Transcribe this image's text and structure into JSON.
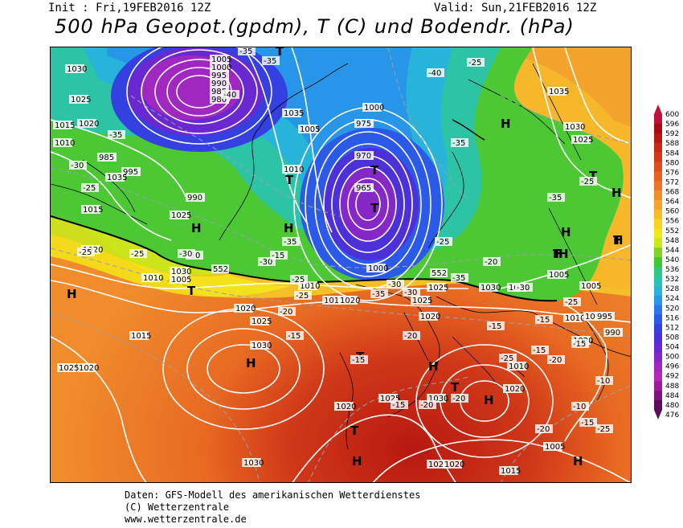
{
  "header": {
    "init": "Init : Fri,19FEB2016 12Z",
    "valid": "Valid: Sun,21FEB2016 12Z",
    "title": "500 hPa Geopot.(gpdm), T (C) und Bodendr. (hPa)"
  },
  "footer": {
    "line1": "Daten: GFS-Modell des amerikanischen Wetterdienstes",
    "line2": "(C) Wetterzentrale",
    "line3": "www.wetterzentrale.de"
  },
  "colorbar": {
    "labels": [
      "600",
      "596",
      "592",
      "588",
      "584",
      "580",
      "576",
      "572",
      "568",
      "564",
      "560",
      "556",
      "552",
      "548",
      "544",
      "540",
      "536",
      "532",
      "528",
      "524",
      "520",
      "516",
      "512",
      "508",
      "504",
      "500",
      "496",
      "492",
      "488",
      "484",
      "480",
      "476"
    ],
    "colors": [
      "#c0103a",
      "#a80c12",
      "#b81810",
      "#c82814",
      "#d43818",
      "#de4c1c",
      "#e66020",
      "#ec7428",
      "#f08c2c",
      "#f4a42c",
      "#f6bc28",
      "#f8d420",
      "#f2e618",
      "#c8e818",
      "#7cd428",
      "#3cc830",
      "#30c87c",
      "#28c4b0",
      "#28b4d8",
      "#2896e8",
      "#2878ec",
      "#2c5ae8",
      "#3440e0",
      "#4c30d8",
      "#6a28d0",
      "#8628c8",
      "#a028c0",
      "#b428b8",
      "#9c1c9c",
      "#7c1480",
      "#5a0c5e"
    ]
  },
  "map": {
    "highs": [
      "H",
      "H",
      "H",
      "H",
      "H",
      "H",
      "H",
      "H",
      "H",
      "H",
      "H",
      "H",
      "H",
      "H"
    ],
    "lows": [
      "T",
      "T",
      "T",
      "T",
      "T",
      "T",
      "T",
      "T",
      "T",
      "T",
      "T"
    ],
    "isobar_labels": [
      "1030",
      "1025",
      "1020",
      "1015",
      "1010",
      "1005",
      "1000",
      "995",
      "990",
      "985",
      "980",
      "975",
      "970",
      "965",
      "1035",
      "1010",
      "1005",
      "995",
      "990",
      "985",
      "1015",
      "1020",
      "1025",
      "1030",
      "1035",
      "1000",
      "1020",
      "1025",
      "1030",
      "1015",
      "1010",
      "1005",
      "1020",
      "1025",
      "1030",
      "1020",
      "1025",
      "1030",
      "1025",
      "1020",
      "1015",
      "1010",
      "1005",
      "1000",
      "1020",
      "1025",
      "1035",
      "1030",
      "1025",
      "1020",
      "1015",
      "1005",
      "1010",
      "1000",
      "995",
      "990",
      "1005",
      "1010",
      "1015",
      "1020",
      "1025",
      "1030",
      "1020"
    ],
    "temp_labels": [
      "-35",
      "-35",
      "-40",
      "-35",
      "-30",
      "-25",
      "-25",
      "-30",
      "-30",
      "-35",
      "-25",
      "-20",
      "-25",
      "-30",
      "-35",
      "-30",
      "-35",
      "-25",
      "-20",
      "-15",
      "-15",
      "-20",
      "-15",
      "-15",
      "-20",
      "-20",
      "-15",
      "-25",
      "-25",
      "-15",
      "-15",
      "-10",
      "-10",
      "-15",
      "-20",
      "-25",
      "-15",
      "-20",
      "-30",
      "-35",
      "-25",
      "-25",
      "-30",
      "-35",
      "-40",
      "-25"
    ],
    "contour_552": "552"
  }
}
